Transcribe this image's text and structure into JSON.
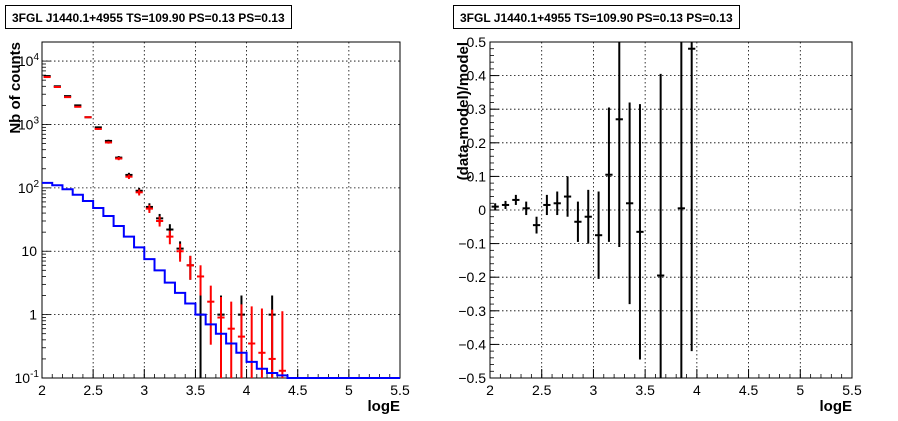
{
  "chart_data": [
    {
      "type": "line",
      "title": "3FGL J1440.1+4955 TS=109.90 PS=0.13 PS=0.13",
      "xlabel": "logE",
      "ylabel": "Nb of counts",
      "xlim": [
        2,
        5.5
      ],
      "ylim": [
        0.1,
        20000
      ],
      "yscale": "log",
      "x_ticks": [
        "2",
        "2.5",
        "3",
        "3.5",
        "4",
        "4.5",
        "5",
        "5.5"
      ],
      "y_ticks": [
        "10^-1",
        "1",
        "10",
        "10^2",
        "10^3",
        "10^4"
      ],
      "grid": true,
      "bin_width": 0.1,
      "series": [
        {
          "color": "#000000",
          "style": "errorbar",
          "x": [
            2.05,
            2.15,
            2.25,
            2.35,
            2.45,
            2.55,
            2.65,
            2.75,
            2.85,
            2.95,
            3.05,
            3.15,
            3.25,
            3.35,
            3.45,
            3.55,
            3.75,
            3.95,
            4.25
          ],
          "values": [
            5800,
            4000,
            2800,
            2000,
            1300,
            900,
            550,
            300,
            160,
            90,
            50,
            33,
            22,
            11,
            6,
            1,
            1,
            1,
            1
          ]
        },
        {
          "color": "#ff0000",
          "style": "errorbar",
          "x": [
            2.05,
            2.15,
            2.25,
            2.35,
            2.45,
            2.55,
            2.65,
            2.75,
            2.85,
            2.95,
            3.05,
            3.15,
            3.25,
            3.35,
            3.45,
            3.55,
            3.65,
            3.75,
            3.85,
            3.95,
            4.05,
            4.15,
            4.25,
            4.35
          ],
          "values": [
            5600,
            3900,
            2700,
            1900,
            1300,
            850,
            520,
            290,
            150,
            85,
            47,
            30,
            17,
            10,
            6,
            4,
            1.6,
            0.9,
            0.6,
            0.45,
            0.35,
            0.25,
            0.2,
            0.13
          ]
        },
        {
          "color": "#0000ff",
          "style": "step",
          "x": [
            2.05,
            2.15,
            2.25,
            2.35,
            2.45,
            2.55,
            2.65,
            2.75,
            2.85,
            2.95,
            3.05,
            3.15,
            3.25,
            3.35,
            3.45,
            3.55,
            3.65,
            3.75,
            3.85,
            3.95,
            4.05,
            4.15,
            4.25,
            4.35,
            4.45,
            4.55,
            4.65,
            4.75,
            4.85,
            4.95,
            5.05,
            5.15,
            5.25,
            5.35,
            5.45
          ],
          "values": [
            120,
            110,
            95,
            78,
            62,
            48,
            36,
            25,
            17,
            11.5,
            7.5,
            5,
            3.2,
            2.2,
            1.5,
            1,
            0.7,
            0.5,
            0.35,
            0.25,
            0.18,
            0.14,
            0.12,
            0.11,
            0.1,
            0.1,
            0.1,
            0.1,
            0.1,
            0.1,
            0.1,
            0.1,
            0.1,
            0.1,
            0.1
          ]
        }
      ]
    },
    {
      "type": "scatter",
      "title": "3FGL J1440.1+4955 TS=109.90 PS=0.13 PS=0.13",
      "xlabel": "logE",
      "ylabel": "(data-model)/model",
      "xlim": [
        2,
        5.5
      ],
      "ylim": [
        -0.5,
        0.5
      ],
      "x_ticks": [
        "2",
        "2.5",
        "3",
        "3.5",
        "4",
        "4.5",
        "5",
        "5.5"
      ],
      "y_ticks": [
        "−0.5",
        "−0.4",
        "−0.3",
        "−0.2",
        "−0.1",
        "0",
        "0.1",
        "0.2",
        "0.3",
        "0.4",
        "0.5"
      ],
      "grid": true,
      "bin_width": 0.1,
      "series": [
        {
          "color": "#000000",
          "style": "errorbar",
          "x": [
            2.05,
            2.15,
            2.25,
            2.35,
            2.45,
            2.55,
            2.65,
            2.75,
            2.85,
            2.95,
            3.05,
            3.15,
            3.25,
            3.35,
            3.45,
            3.65,
            3.85,
            3.95
          ],
          "values": [
            0.01,
            0.015,
            0.03,
            0.005,
            -0.045,
            0.015,
            0.02,
            0.04,
            -0.035,
            -0.02,
            -0.075,
            0.105,
            0.27,
            0.02,
            -0.065,
            -0.195,
            0.005,
            0.48
          ],
          "errors": [
            0.01,
            0.012,
            0.015,
            0.02,
            0.025,
            0.03,
            0.035,
            0.06,
            0.06,
            0.08,
            0.13,
            0.2,
            0.38,
            0.3,
            0.38,
            0.6,
            0.6,
            0.9
          ]
        }
      ]
    }
  ]
}
